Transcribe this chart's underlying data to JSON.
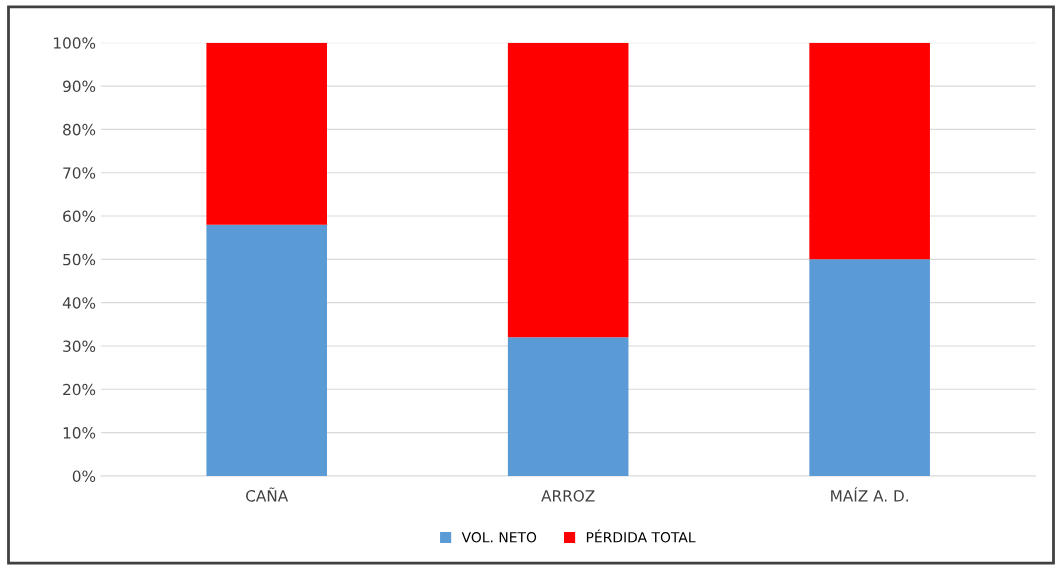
{
  "chart_data": {
    "type": "bar",
    "stacked": true,
    "categories": [
      "CAÑA",
      "ARROZ",
      "MAÍZ A. D."
    ],
    "series": [
      {
        "name": "VOL. NETO",
        "color": "#5b9bd5",
        "values": [
          58,
          32,
          50
        ]
      },
      {
        "name": "PÉRDIDA TOTAL",
        "color": "#ff0000",
        "values": [
          42,
          68,
          50
        ]
      }
    ],
    "ylim": [
      0,
      100
    ],
    "yticks": [
      {
        "value": 0,
        "label": "0%"
      },
      {
        "value": 10,
        "label": "10%"
      },
      {
        "value": 20,
        "label": "20%"
      },
      {
        "value": 30,
        "label": "30%"
      },
      {
        "value": 40,
        "label": "40%"
      },
      {
        "value": 50,
        "label": "50%"
      },
      {
        "value": 60,
        "label": "60%"
      },
      {
        "value": 70,
        "label": "70%"
      },
      {
        "value": 80,
        "label": "80%"
      },
      {
        "value": 90,
        "label": "90%"
      },
      {
        "value": 100,
        "label": "100%"
      }
    ],
    "grid": "y",
    "legend": "bottom"
  }
}
